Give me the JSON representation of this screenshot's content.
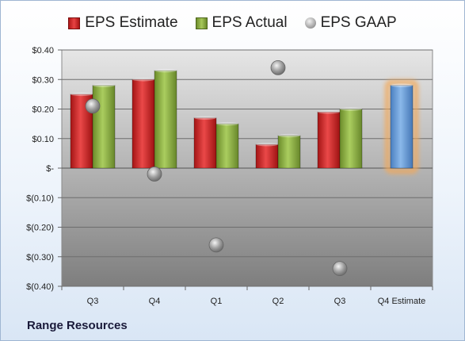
{
  "chart_data": {
    "type": "bar",
    "categories": [
      "Q3",
      "Q4",
      "Q1",
      "Q2",
      "Q3",
      "Q4 Estimate"
    ],
    "series": [
      {
        "name": "EPS Estimate",
        "values": [
          0.25,
          0.3,
          0.17,
          0.08,
          0.19,
          null
        ],
        "color": "#d42a2a"
      },
      {
        "name": "EPS Actual",
        "values": [
          0.28,
          0.33,
          0.15,
          0.11,
          0.2,
          null
        ],
        "color": "#8db04a"
      },
      {
        "name": "EPS GAAP",
        "type": "scatter",
        "values": [
          0.21,
          -0.02,
          -0.26,
          0.34,
          -0.34,
          null
        ],
        "color": "#a0a0a0"
      }
    ],
    "forecast": {
      "category": "Q4 Estimate",
      "value": 0.28,
      "color": "#6a9ed8",
      "glow": "#f3a95a"
    },
    "ylim": [
      -0.4,
      0.4
    ],
    "yticks": [
      0.4,
      0.3,
      0.2,
      0.1,
      0.0,
      -0.1,
      -0.2,
      -0.3,
      -0.4
    ],
    "ytick_labels": [
      "$0.40",
      "$0.30",
      "$0.20",
      "$0.10",
      "$-",
      "$(0.10)",
      "$(0.20)",
      "$(0.30)",
      "$(0.40)"
    ],
    "grid": true,
    "legend_position": "top"
  },
  "legend": {
    "estimate": "EPS Estimate",
    "actual": "EPS Actual",
    "gaap": "EPS GAAP"
  },
  "company": "Range Resources"
}
